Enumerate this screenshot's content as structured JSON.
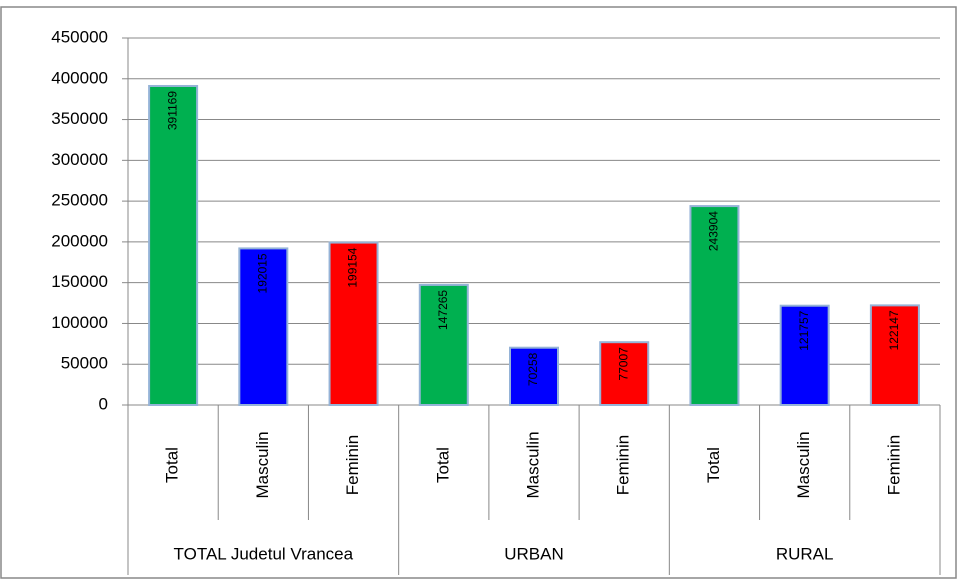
{
  "chart_data": {
    "type": "bar",
    "categories": [
      "Total",
      "Masculin",
      "Feminin",
      "Total",
      "Masculin",
      "Feminin",
      "Total",
      "Masculin",
      "Feminin"
    ],
    "groups": [
      {
        "name": "TOTAL Judetul Vrancea",
        "size": 3
      },
      {
        "name": "URBAN",
        "size": 3
      },
      {
        "name": "RURAL",
        "size": 3
      }
    ],
    "values": [
      391169,
      192015,
      199154,
      147265,
      70258,
      77007,
      243904,
      121757,
      122147
    ],
    "colors": [
      "#00b050",
      "#0000ff",
      "#ff0000",
      "#00b050",
      "#0000ff",
      "#ff0000",
      "#00b050",
      "#0000ff",
      "#ff0000"
    ],
    "ylim": [
      0,
      450000
    ],
    "yticks": [
      0,
      50000,
      100000,
      150000,
      200000,
      250000,
      300000,
      350000,
      400000,
      450000
    ],
    "grid": true
  }
}
